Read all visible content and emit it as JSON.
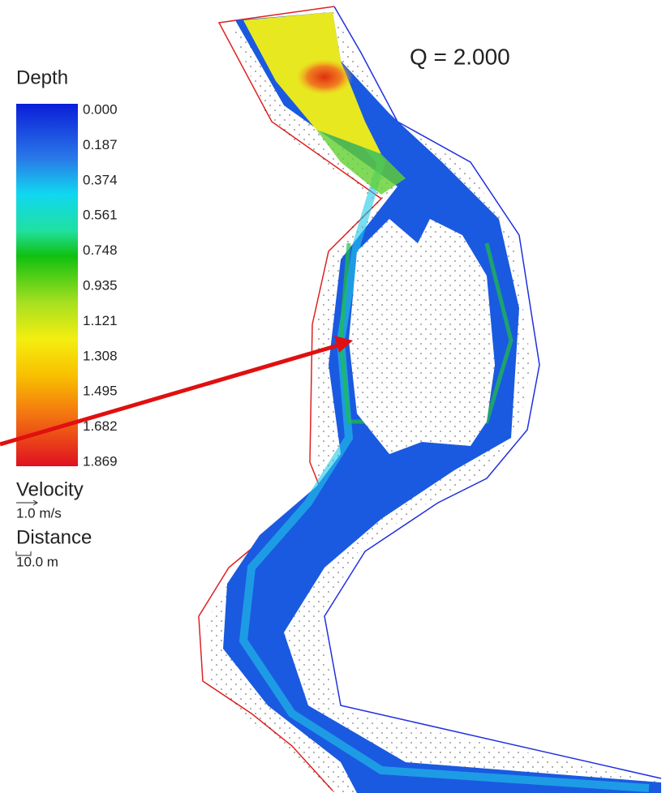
{
  "title": "Q = 2.000",
  "legend": {
    "title": "Depth",
    "labels": [
      "0.000",
      "0.187",
      "0.374",
      "0.561",
      "0.748",
      "0.935",
      "1.121",
      "1.308",
      "1.495",
      "1.682",
      "1.869"
    ]
  },
  "velocity": {
    "title": "Velocity",
    "label": "1.0 m/s"
  },
  "distance": {
    "title": "Distance",
    "label": "10.0 m"
  }
}
